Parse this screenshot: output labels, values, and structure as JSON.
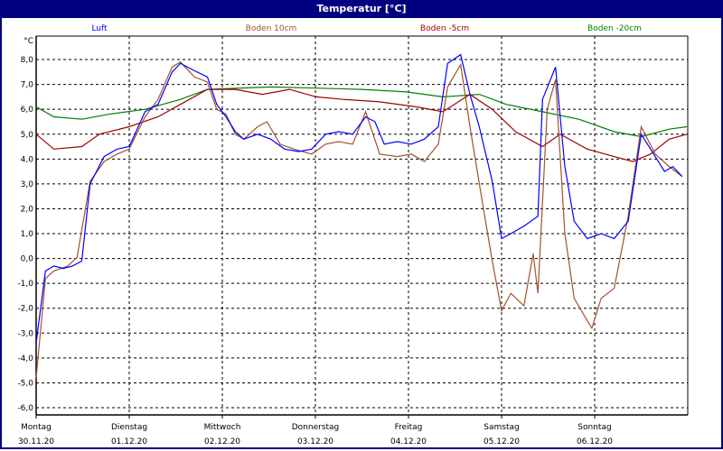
{
  "title": "Temperatur [°C]",
  "chart_data": {
    "type": "line",
    "title": "Temperatur [°C]",
    "ylabel": "°C",
    "xlabel": "",
    "ylim": [
      -6.5,
      9.0
    ],
    "xlim": [
      0,
      7
    ],
    "x_unit": "days since 30.11.20 00:00",
    "grid": true,
    "legend_placement": "top",
    "y_ticks": [
      8,
      7,
      6,
      5,
      4,
      3,
      2,
      1,
      0,
      -1,
      -2,
      -3,
      -4,
      -5,
      -6
    ],
    "y_tick_labels": [
      "8,0",
      "7,0",
      "6,0",
      "5,0",
      "4,0",
      "3,0",
      "2,0",
      "1,0",
      "0,0",
      "-1,0",
      "-2,0",
      "-3,0",
      "-4,0",
      "-5,0",
      "-6,0"
    ],
    "x_ticks": [
      {
        "day": "Montag",
        "date": "30.11.20"
      },
      {
        "day": "Dienstag",
        "date": "01.12.20"
      },
      {
        "day": "Mittwoch",
        "date": "02.12.20"
      },
      {
        "day": "Donnerstag",
        "date": "03.12.20"
      },
      {
        "day": "Freitag",
        "date": "04.12.20"
      },
      {
        "day": "Samstag",
        "date": "05.12.20"
      },
      {
        "day": "Sonntag",
        "date": "06.12.20"
      }
    ],
    "series": [
      {
        "name": "Luft",
        "color": "#0000ff",
        "points": [
          [
            0,
            -3.4
          ],
          [
            0.1,
            -0.5
          ],
          [
            0.19,
            -0.3
          ],
          [
            0.29,
            -0.4
          ],
          [
            0.39,
            -0.3
          ],
          [
            0.49,
            -0.1
          ],
          [
            0.58,
            3.0
          ],
          [
            0.73,
            4.1
          ],
          [
            0.87,
            4.4
          ],
          [
            1.0,
            4.5
          ],
          [
            1.17,
            5.9
          ],
          [
            1.31,
            6.2
          ],
          [
            1.46,
            7.5
          ],
          [
            1.55,
            7.85
          ],
          [
            1.7,
            7.55
          ],
          [
            1.84,
            7.3
          ],
          [
            1.94,
            6.2
          ],
          [
            2.04,
            5.7
          ],
          [
            2.14,
            5.1
          ],
          [
            2.23,
            4.8
          ],
          [
            2.38,
            5.0
          ],
          [
            2.52,
            4.8
          ],
          [
            2.67,
            4.4
          ],
          [
            2.82,
            4.3
          ],
          [
            2.96,
            4.4
          ],
          [
            3.11,
            5.0
          ],
          [
            3.25,
            5.1
          ],
          [
            3.4,
            5.0
          ],
          [
            3.54,
            5.7
          ],
          [
            3.64,
            5.5
          ],
          [
            3.74,
            4.6
          ],
          [
            3.88,
            4.7
          ],
          [
            4.03,
            4.6
          ],
          [
            4.17,
            4.8
          ],
          [
            4.32,
            5.3
          ],
          [
            4.42,
            7.85
          ],
          [
            4.56,
            8.2
          ],
          [
            4.66,
            6.6
          ],
          [
            4.76,
            5.3
          ],
          [
            4.9,
            3.1
          ],
          [
            5.0,
            0.8
          ],
          [
            5.1,
            1.0
          ],
          [
            5.24,
            1.3
          ],
          [
            5.39,
            1.7
          ],
          [
            5.44,
            6.4
          ],
          [
            5.58,
            7.7
          ],
          [
            5.68,
            3.7
          ],
          [
            5.78,
            1.5
          ],
          [
            5.92,
            0.8
          ],
          [
            6.07,
            1.0
          ],
          [
            6.21,
            0.8
          ],
          [
            6.36,
            1.5
          ],
          [
            6.5,
            5.0
          ],
          [
            6.65,
            4.1
          ],
          [
            6.75,
            3.5
          ],
          [
            6.84,
            3.7
          ],
          [
            6.94,
            3.3
          ]
        ]
      },
      {
        "name": "Boden 10cm",
        "color": "#a0522d",
        "points": [
          [
            0,
            -4.8
          ],
          [
            0.1,
            -0.8
          ],
          [
            0.19,
            -0.5
          ],
          [
            0.34,
            -0.3
          ],
          [
            0.44,
            0.05
          ],
          [
            0.58,
            3.1
          ],
          [
            0.73,
            3.9
          ],
          [
            0.87,
            4.2
          ],
          [
            1.0,
            4.4
          ],
          [
            1.17,
            5.7
          ],
          [
            1.31,
            6.4
          ],
          [
            1.46,
            7.7
          ],
          [
            1.55,
            7.9
          ],
          [
            1.7,
            7.3
          ],
          [
            1.84,
            7.1
          ],
          [
            1.94,
            6.0
          ],
          [
            2.04,
            5.8
          ],
          [
            2.14,
            5.0
          ],
          [
            2.23,
            4.8
          ],
          [
            2.38,
            5.3
          ],
          [
            2.48,
            5.5
          ],
          [
            2.62,
            4.6
          ],
          [
            2.77,
            4.4
          ],
          [
            2.96,
            4.2
          ],
          [
            3.11,
            4.6
          ],
          [
            3.25,
            4.7
          ],
          [
            3.4,
            4.6
          ],
          [
            3.54,
            5.9
          ],
          [
            3.69,
            4.2
          ],
          [
            3.88,
            4.1
          ],
          [
            4.03,
            4.2
          ],
          [
            4.17,
            3.9
          ],
          [
            4.32,
            4.6
          ],
          [
            4.42,
            6.9
          ],
          [
            4.56,
            7.8
          ],
          [
            4.66,
            5.3
          ],
          [
            4.81,
            1.9
          ],
          [
            4.9,
            -0.1
          ],
          [
            5.0,
            -2.1
          ],
          [
            5.1,
            -1.4
          ],
          [
            5.24,
            -1.9
          ],
          [
            5.34,
            0.2
          ],
          [
            5.39,
            -1.4
          ],
          [
            5.49,
            6.0
          ],
          [
            5.58,
            7.2
          ],
          [
            5.68,
            1.0
          ],
          [
            5.78,
            -1.6
          ],
          [
            5.92,
            -2.5
          ],
          [
            5.97,
            -2.8
          ],
          [
            6.07,
            -1.6
          ],
          [
            6.21,
            -1.2
          ],
          [
            6.36,
            1.7
          ],
          [
            6.5,
            5.3
          ],
          [
            6.65,
            4.2
          ],
          [
            6.8,
            3.7
          ],
          [
            6.94,
            3.3
          ]
        ]
      },
      {
        "name": "Boden -5cm",
        "color": "#a00000",
        "points": [
          [
            0,
            5.0
          ],
          [
            0.19,
            4.4
          ],
          [
            0.49,
            4.5
          ],
          [
            0.68,
            5.0
          ],
          [
            1.0,
            5.3
          ],
          [
            1.31,
            5.7
          ],
          [
            1.55,
            6.2
          ],
          [
            1.84,
            6.8
          ],
          [
            2.14,
            6.8
          ],
          [
            2.43,
            6.6
          ],
          [
            2.72,
            6.8
          ],
          [
            3.01,
            6.5
          ],
          [
            3.3,
            6.4
          ],
          [
            3.69,
            6.3
          ],
          [
            4.08,
            6.1
          ],
          [
            4.37,
            5.9
          ],
          [
            4.66,
            6.6
          ],
          [
            4.9,
            6.0
          ],
          [
            5.15,
            5.1
          ],
          [
            5.44,
            4.5
          ],
          [
            5.63,
            5.0
          ],
          [
            5.92,
            4.4
          ],
          [
            6.21,
            4.1
          ],
          [
            6.41,
            3.9
          ],
          [
            6.6,
            4.2
          ],
          [
            6.8,
            4.8
          ],
          [
            6.99,
            5.0
          ]
        ]
      },
      {
        "name": "Boden -20cm",
        "color": "#008000",
        "points": [
          [
            0,
            6.1
          ],
          [
            0.19,
            5.7
          ],
          [
            0.49,
            5.6
          ],
          [
            0.78,
            5.8
          ],
          [
            1.17,
            6.0
          ],
          [
            1.55,
            6.4
          ],
          [
            1.84,
            6.8
          ],
          [
            2.52,
            6.9
          ],
          [
            3.01,
            6.85
          ],
          [
            3.5,
            6.8
          ],
          [
            3.98,
            6.7
          ],
          [
            4.37,
            6.5
          ],
          [
            4.76,
            6.6
          ],
          [
            5.05,
            6.2
          ],
          [
            5.44,
            5.9
          ],
          [
            5.83,
            5.6
          ],
          [
            6.21,
            5.1
          ],
          [
            6.5,
            4.9
          ],
          [
            6.8,
            5.2
          ],
          [
            6.99,
            5.3
          ]
        ]
      }
    ]
  }
}
